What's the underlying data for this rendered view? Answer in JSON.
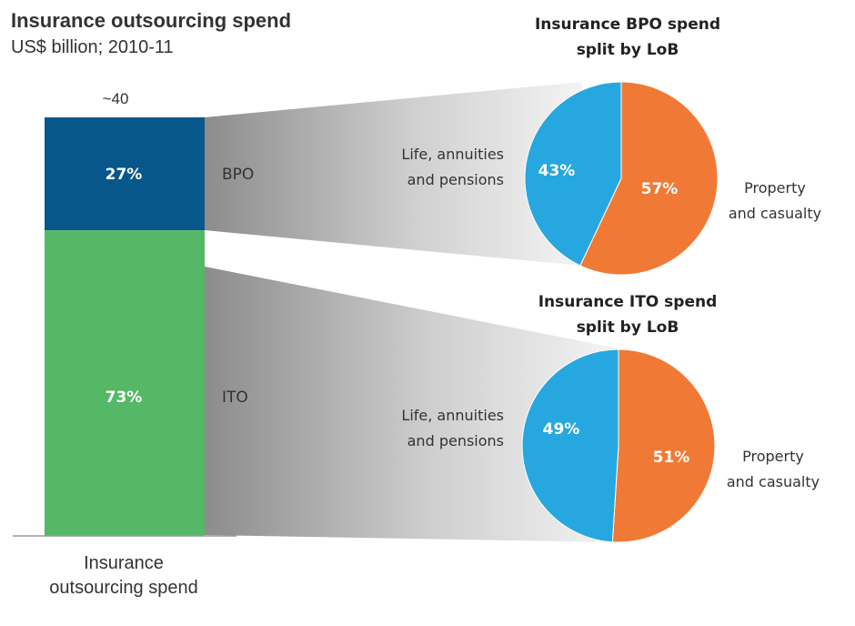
{
  "title": "Insurance outsourcing spend",
  "subtitle": "US$ billion; 2010-11",
  "chart_data": [
    {
      "type": "bar",
      "stacked": true,
      "percent": true,
      "categories": [
        "Insurance outsourcing spend"
      ],
      "category_label_lines": [
        "Insurance",
        "outsourcing spend"
      ],
      "total_label": "~40",
      "series": [
        {
          "name": "BPO",
          "values": [
            27
          ],
          "label": "27%",
          "color": "#08578a"
        },
        {
          "name": "ITO",
          "values": [
            73
          ],
          "label": "73%",
          "color": "#54b866"
        }
      ]
    },
    {
      "type": "pie",
      "title_lines": [
        "Insurance BPO spend",
        "split by LoB"
      ],
      "slices": [
        {
          "label_lines": [
            "Property",
            "and casualty"
          ],
          "value": 57,
          "text": "57%",
          "color": "#f07a35"
        },
        {
          "label_lines": [
            "Life, annuities",
            "and pensions"
          ],
          "value": 43,
          "text": "43%",
          "color": "#27a7df"
        }
      ]
    },
    {
      "type": "pie",
      "title_lines": [
        "Insurance ITO spend",
        "split by LoB"
      ],
      "slices": [
        {
          "label_lines": [
            "Property",
            "and casualty"
          ],
          "value": 51,
          "text": "51%",
          "color": "#f07a35"
        },
        {
          "label_lines": [
            "Life, annuities",
            "and pensions"
          ],
          "value": 49,
          "text": "49%",
          "color": "#27a7df"
        }
      ]
    }
  ]
}
